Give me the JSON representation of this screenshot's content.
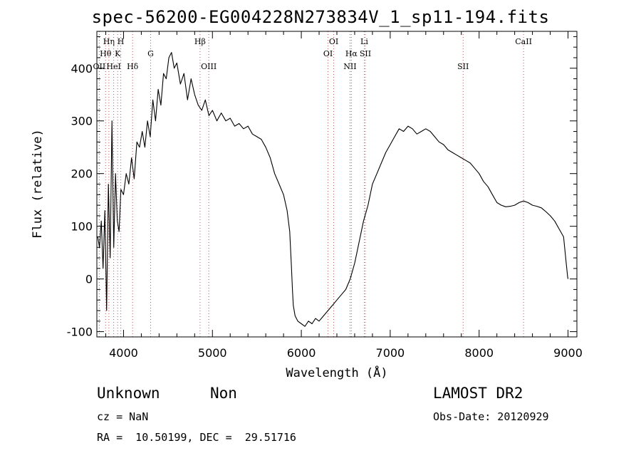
{
  "header": {
    "title": "spec-56200-EG004228N273834V_1_sp11-194.fits"
  },
  "footer": {
    "class_label": "Unknown",
    "subclass_label": "Non",
    "survey_label": "LAMOST DR2",
    "cz_text": "cz = NaN",
    "obs_date_text": "Obs-Date: 20120929",
    "radec_text": "RA =  10.50199, DEC =  29.51716"
  },
  "chart_data": {
    "type": "line",
    "title": "spec-56200-EG004228N273834V_1_sp11-194.fits",
    "xlabel": "Wavelength (Å)",
    "ylabel": "Flux (relative)",
    "xlim": [
      3700,
      9100
    ],
    "ylim": [
      -110,
      470
    ],
    "xticks": [
      4000,
      5000,
      6000,
      7000,
      8000,
      9000
    ],
    "yticks": [
      -100,
      0,
      100,
      200,
      300,
      400
    ],
    "grid": false,
    "series": [
      {
        "name": "",
        "color": "#000000",
        "x": [
          3710,
          3730,
          3750,
          3770,
          3790,
          3810,
          3830,
          3850,
          3870,
          3890,
          3910,
          3930,
          3950,
          3970,
          4000,
          4030,
          4060,
          4090,
          4120,
          4150,
          4180,
          4210,
          4240,
          4270,
          4300,
          4330,
          4360,
          4390,
          4420,
          4450,
          4480,
          4510,
          4540,
          4570,
          4600,
          4640,
          4680,
          4720,
          4760,
          4800,
          4840,
          4880,
          4920,
          4960,
          5000,
          5050,
          5100,
          5150,
          5200,
          5250,
          5300,
          5350,
          5400,
          5450,
          5500,
          5550,
          5600,
          5650,
          5700,
          5750,
          5800,
          5840,
          5870,
          5890,
          5900,
          5910,
          5930,
          5960,
          6000,
          6040,
          6080,
          6120,
          6160,
          6200,
          6250,
          6300,
          6350,
          6400,
          6450,
          6500,
          6550,
          6600,
          6650,
          6700,
          6750,
          6800,
          6850,
          6900,
          6950,
          7000,
          7050,
          7100,
          7150,
          7200,
          7250,
          7300,
          7350,
          7400,
          7450,
          7500,
          7550,
          7600,
          7650,
          7700,
          7750,
          7800,
          7850,
          7900,
          7950,
          8000,
          8050,
          8100,
          8150,
          8200,
          8250,
          8300,
          8350,
          8400,
          8450,
          8500,
          8550,
          8600,
          8650,
          8700,
          8750,
          8800,
          8850,
          8900,
          8950,
          8980,
          8995,
          9000
        ],
        "y": [
          80,
          60,
          110,
          20,
          130,
          -60,
          180,
          40,
          300,
          60,
          200,
          110,
          90,
          170,
          160,
          200,
          180,
          230,
          190,
          260,
          250,
          280,
          250,
          300,
          270,
          340,
          300,
          360,
          330,
          390,
          380,
          420,
          430,
          400,
          410,
          370,
          390,
          340,
          380,
          350,
          330,
          320,
          340,
          310,
          320,
          300,
          315,
          300,
          305,
          290,
          295,
          285,
          290,
          275,
          270,
          265,
          250,
          230,
          200,
          180,
          160,
          130,
          90,
          20,
          -20,
          -50,
          -70,
          -80,
          -85,
          -90,
          -80,
          -85,
          -75,
          -80,
          -70,
          -60,
          -50,
          -40,
          -30,
          -20,
          0,
          30,
          70,
          110,
          140,
          180,
          200,
          220,
          240,
          255,
          270,
          285,
          280,
          290,
          285,
          275,
          280,
          285,
          280,
          270,
          260,
          255,
          245,
          240,
          235,
          230,
          225,
          220,
          210,
          200,
          185,
          175,
          160,
          145,
          140,
          137,
          138,
          140,
          145,
          148,
          145,
          140,
          138,
          135,
          128,
          120,
          110,
          95,
          80,
          30,
          5,
          0
        ]
      }
    ],
    "line_markers": [
      {
        "label": "OII",
        "x": 3727,
        "row": 2
      },
      {
        "label": "Hθ",
        "x": 3798,
        "row": 1
      },
      {
        "label": "Hη",
        "x": 3835,
        "row": 0
      },
      {
        "label": "HeI",
        "x": 3889,
        "row": 2
      },
      {
        "label": "K",
        "x": 3934,
        "row": 1
      },
      {
        "label": "H",
        "x": 3969,
        "row": 0
      },
      {
        "label": "Hδ",
        "x": 4102,
        "row": 2
      },
      {
        "label": "G",
        "x": 4305,
        "row": 1
      },
      {
        "label": "Hβ",
        "x": 4861,
        "row": 0
      },
      {
        "label": "OIII",
        "x": 4959,
        "row": 2
      },
      {
        "label": "OI",
        "x": 6300,
        "row": 1
      },
      {
        "label": "OI",
        "x": 6364,
        "row": 0
      },
      {
        "label": "NII",
        "x": 6548,
        "row": 2
      },
      {
        "label": "Hα",
        "x": 6563,
        "row": 1
      },
      {
        "label": "Li",
        "x": 6708,
        "row": 0
      },
      {
        "label": "SII",
        "x": 6720,
        "row": 1
      },
      {
        "label": "SII",
        "x": 7820,
        "row": 2
      },
      {
        "label": "CaII",
        "x": 8500,
        "row": 0
      }
    ]
  }
}
